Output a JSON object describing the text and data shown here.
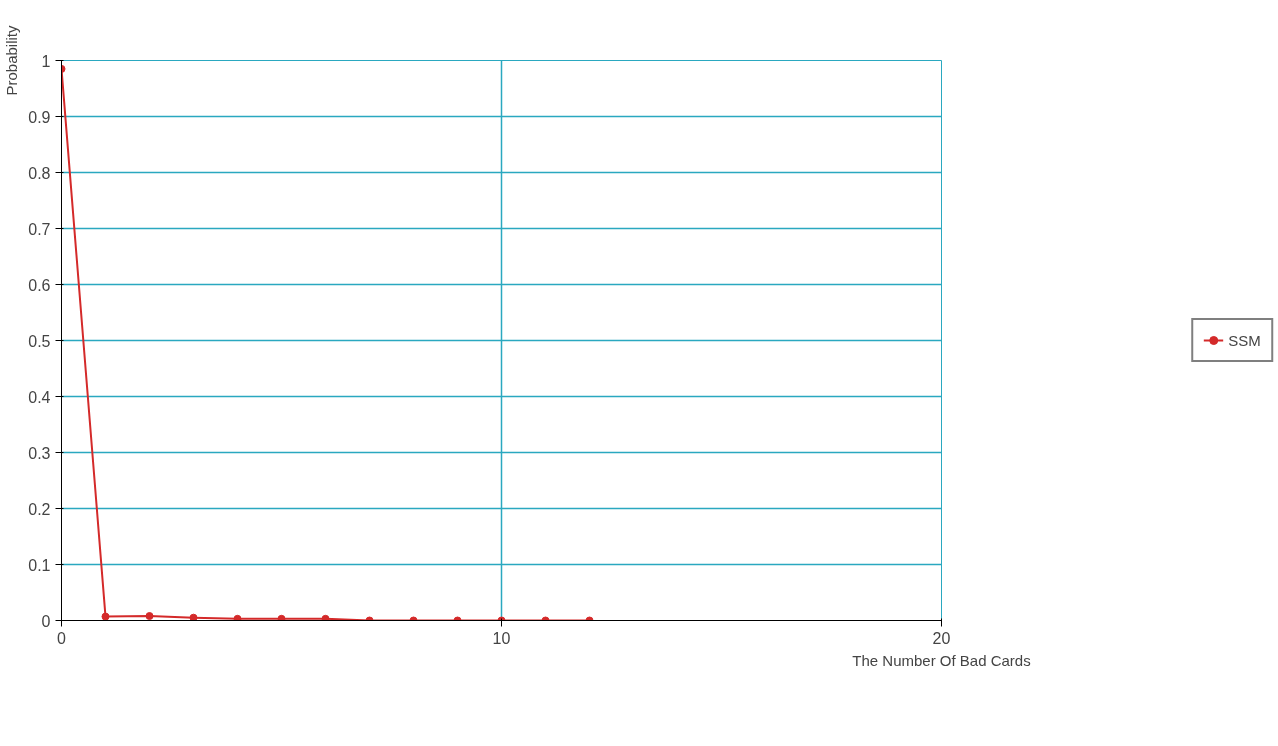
{
  "chart_data": {
    "type": "line",
    "xlabel": "The Number Of Bad Cards",
    "ylabel": "Probability",
    "x": [
      0,
      1,
      2,
      3,
      4,
      5,
      6,
      7,
      8,
      9,
      10,
      11,
      12
    ],
    "series": [
      {
        "name": "SSM",
        "color": "#d42a2a",
        "values": [
          0.985,
          0.007,
          0.008,
          0.005,
          0.003,
          0.003,
          0.003,
          0,
          0,
          0,
          0,
          0,
          0
        ]
      }
    ],
    "xlim": [
      0,
      20
    ],
    "xticks": [
      0,
      10,
      20
    ],
    "ylim": [
      0,
      1
    ],
    "yticks": [
      0,
      0.1,
      0.2,
      0.3,
      0.4,
      0.5,
      0.6,
      0.7,
      0.8,
      0.9,
      1
    ],
    "grid": true,
    "legend": "right",
    "marker": "circle",
    "line_style": "solid"
  }
}
